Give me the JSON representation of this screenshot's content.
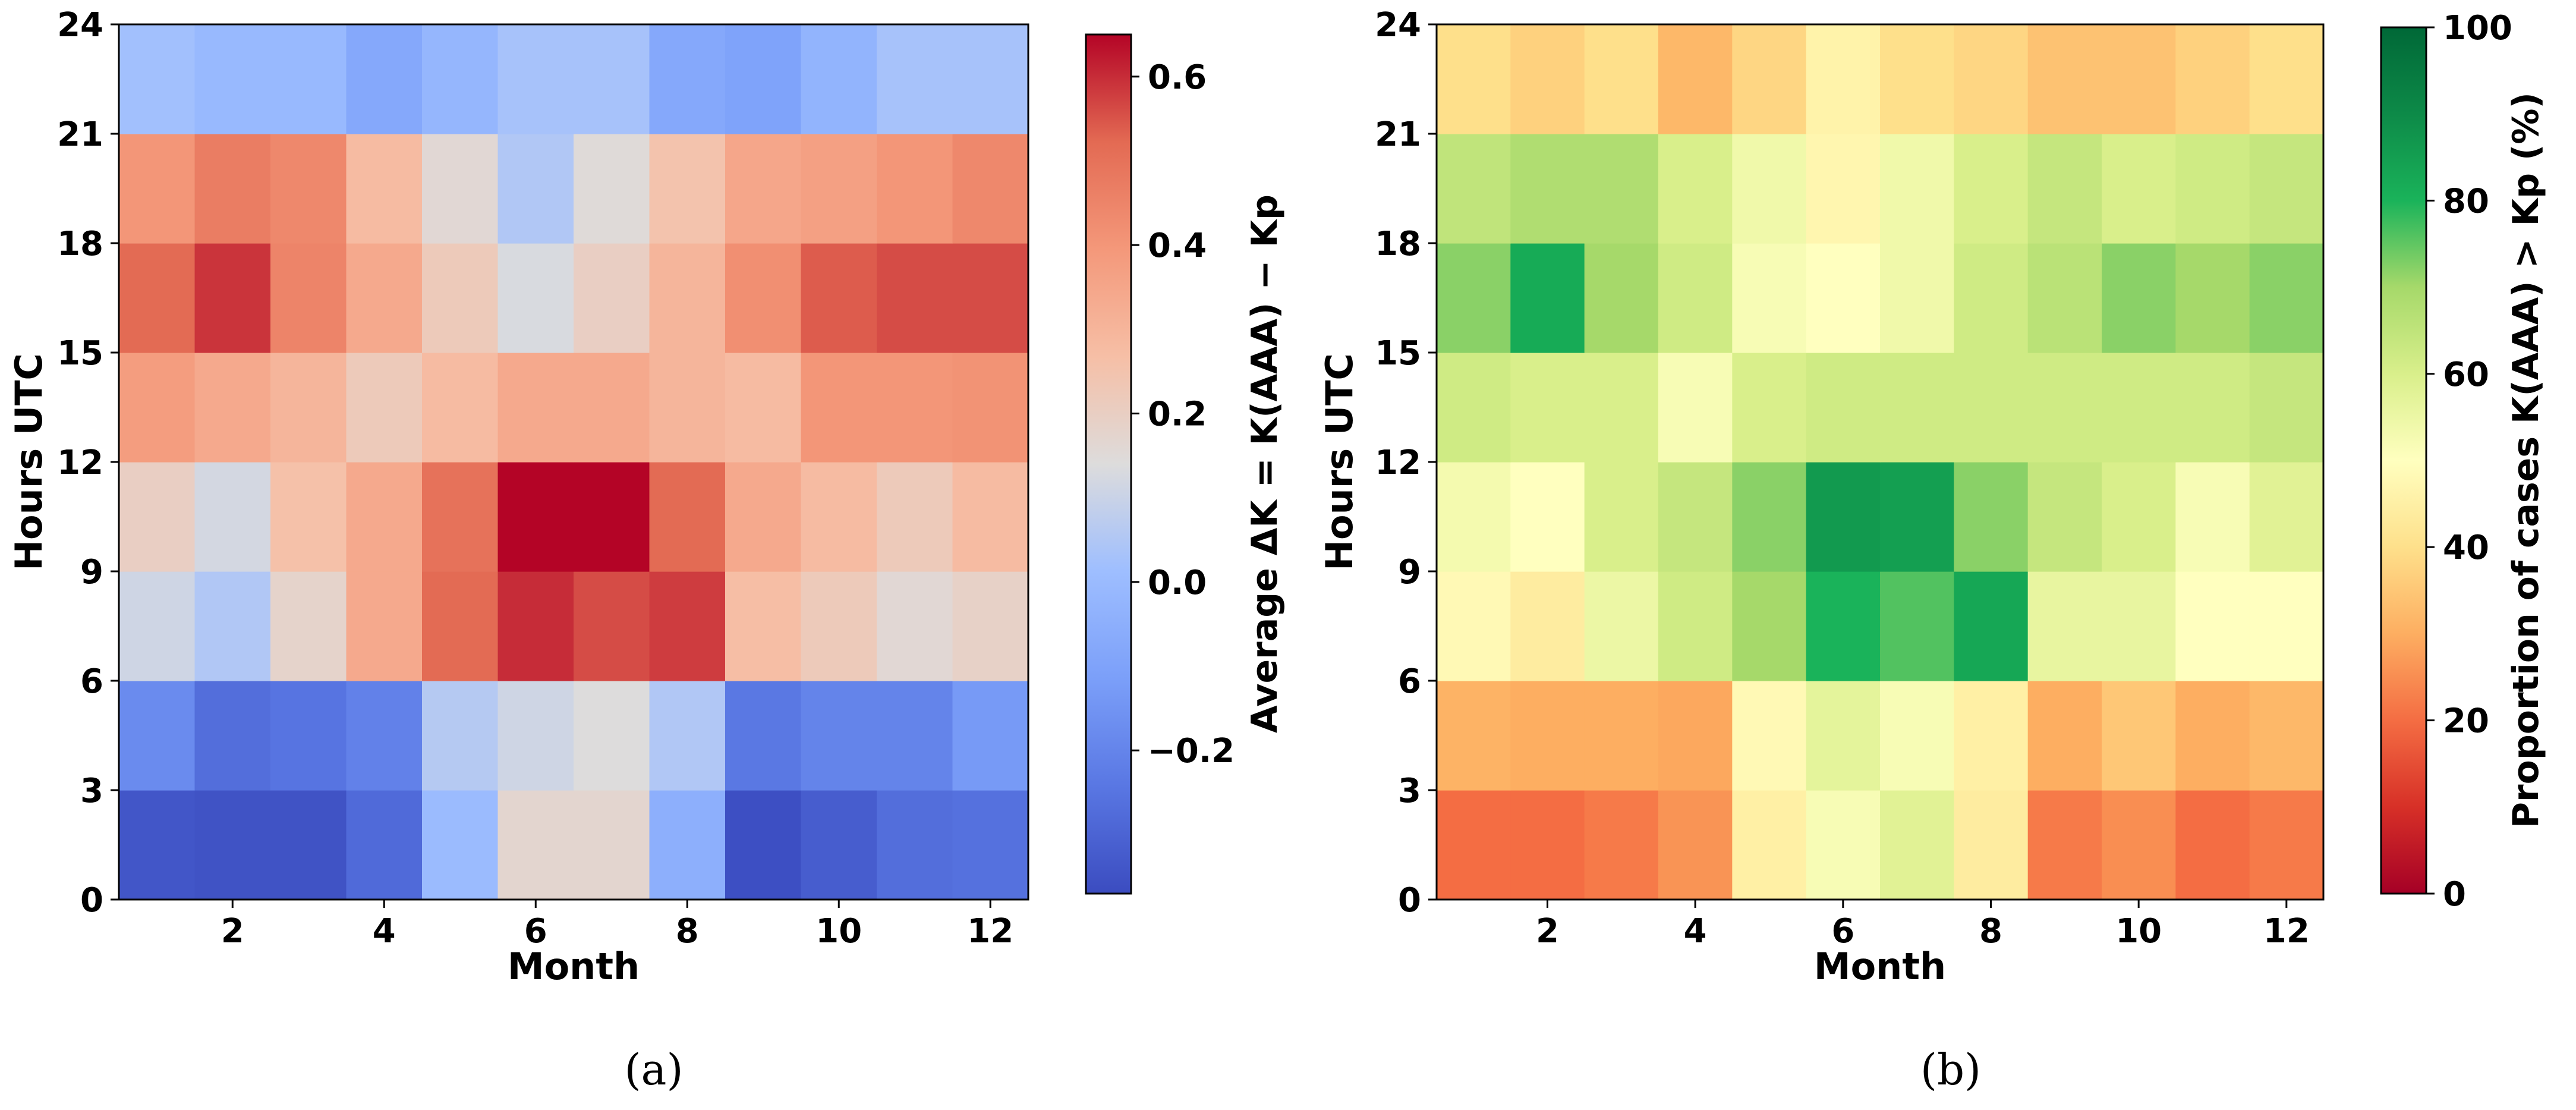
{
  "chart_data": [
    {
      "type": "heatmap",
      "panel_caption": "(a)",
      "xlabel": "Month",
      "ylabel": "Hours UTC",
      "x_ticks": [
        2,
        4,
        6,
        8,
        10,
        12
      ],
      "xlim": [
        1,
        12
      ],
      "y_ticks": [
        0,
        3,
        6,
        9,
        12,
        15,
        18,
        21,
        24
      ],
      "ylim": [
        0,
        24
      ],
      "months": [
        1,
        2,
        3,
        4,
        5,
        6,
        7,
        8,
        9,
        10,
        11,
        12
      ],
      "hour_bins": [
        "0-3",
        "3-6",
        "6-9",
        "9-12",
        "12-15",
        "15-18",
        "18-21",
        "21-24"
      ],
      "colorbar": {
        "label": "Average ΔK = K(AAA) − Kp",
        "colormap": "coolwarm",
        "vmin": -0.37,
        "vmax": 0.65,
        "ticks": [
          -0.2,
          0.0,
          0.2,
          0.4,
          0.6
        ],
        "tick_labels": [
          "−0.2",
          "0.0",
          "0.2",
          "0.4",
          "0.6"
        ]
      },
      "values": [
        [
          -0.34,
          -0.35,
          -0.35,
          -0.28,
          0.0,
          0.17,
          0.17,
          -0.05,
          -0.36,
          -0.32,
          -0.27,
          -0.26
        ],
        [
          -0.18,
          -0.27,
          -0.25,
          -0.21,
          0.06,
          0.11,
          0.14,
          0.05,
          -0.24,
          -0.2,
          -0.2,
          -0.13
        ],
        [
          0.11,
          0.05,
          0.18,
          0.34,
          0.52,
          0.6,
          0.56,
          0.58,
          0.27,
          0.22,
          0.16,
          0.19
        ],
        [
          0.2,
          0.12,
          0.26,
          0.34,
          0.5,
          0.65,
          0.65,
          0.52,
          0.34,
          0.28,
          0.22,
          0.28
        ],
        [
          0.38,
          0.34,
          0.3,
          0.22,
          0.28,
          0.34,
          0.34,
          0.3,
          0.28,
          0.4,
          0.4,
          0.41
        ],
        [
          0.52,
          0.59,
          0.45,
          0.34,
          0.22,
          0.13,
          0.2,
          0.3,
          0.42,
          0.54,
          0.56,
          0.56
        ],
        [
          0.4,
          0.47,
          0.44,
          0.28,
          0.16,
          0.05,
          0.15,
          0.25,
          0.35,
          0.37,
          0.4,
          0.44
        ],
        [
          0.02,
          -0.01,
          -0.01,
          -0.08,
          -0.02,
          0.03,
          0.03,
          -0.08,
          -0.1,
          -0.03,
          0.03,
          0.03
        ]
      ]
    },
    {
      "type": "heatmap",
      "panel_caption": "(b)",
      "xlabel": "Month",
      "ylabel": "Hours UTC",
      "x_ticks": [
        2,
        4,
        6,
        8,
        10,
        12
      ],
      "xlim": [
        1,
        12
      ],
      "y_ticks": [
        0,
        3,
        6,
        9,
        12,
        15,
        18,
        21,
        24
      ],
      "ylim": [
        0,
        24
      ],
      "months": [
        1,
        2,
        3,
        4,
        5,
        6,
        7,
        8,
        9,
        10,
        11,
        12
      ],
      "hour_bins": [
        "0-3",
        "3-6",
        "6-9",
        "9-12",
        "12-15",
        "15-18",
        "18-21",
        "21-24"
      ],
      "colorbar": {
        "label": "Proportion of cases K(AAA) > Kp (%)",
        "colormap": "RdYlGn",
        "vmin": 0,
        "vmax": 100,
        "ticks": [
          0,
          20,
          40,
          60,
          80,
          100
        ],
        "tick_labels": [
          "0",
          "20",
          "40",
          "60",
          "80",
          "100"
        ]
      },
      "values": [
        [
          20,
          20,
          22,
          26,
          45,
          52,
          58,
          44,
          22,
          25,
          20,
          22
        ],
        [
          31,
          30,
          30,
          29,
          48,
          57,
          52,
          45,
          30,
          35,
          30,
          32
        ],
        [
          48,
          44,
          55,
          62,
          70,
          80,
          76,
          83,
          56,
          56,
          50,
          50
        ],
        [
          53,
          50,
          60,
          64,
          72,
          86,
          85,
          72,
          64,
          60,
          52,
          58
        ],
        [
          62,
          60,
          60,
          52,
          60,
          62,
          62,
          62,
          62,
          62,
          62,
          64
        ],
        [
          72,
          82,
          70,
          62,
          52,
          50,
          54,
          62,
          66,
          72,
          70,
          72
        ],
        [
          65,
          68,
          68,
          60,
          54,
          47,
          54,
          60,
          64,
          60,
          62,
          64
        ],
        [
          40,
          37,
          40,
          32,
          38,
          46,
          40,
          38,
          34,
          34,
          37,
          40
        ]
      ]
    }
  ]
}
